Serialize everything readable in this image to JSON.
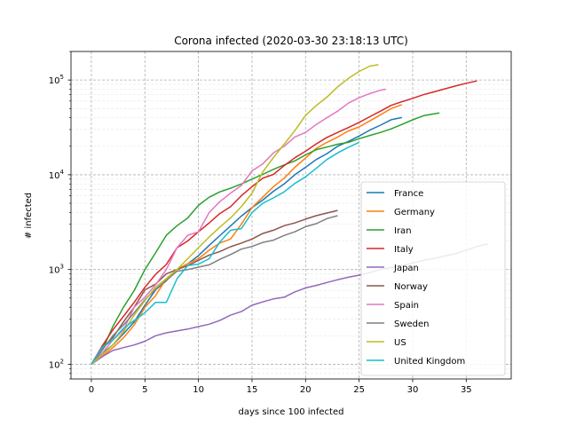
{
  "chart_data": {
    "type": "line",
    "title": "Corona infected (2020-03-30 23:18:13 UTC)",
    "xlabel": "days since 100 infected",
    "ylabel": "# infected",
    "yscale": "log",
    "xlim": [
      -1.9,
      39.2
    ],
    "ylim": [
      70,
      200000
    ],
    "xticks": [
      0,
      5,
      10,
      15,
      20,
      25,
      30,
      35
    ],
    "yticks": [
      100,
      1000,
      10000,
      100000
    ],
    "ytick_labels": [
      {
        "base": "10",
        "exp": "2"
      },
      {
        "base": "10",
        "exp": "3"
      },
      {
        "base": "10",
        "exp": "4"
      },
      {
        "base": "10",
        "exp": "5"
      }
    ],
    "grid": true,
    "minor_grid": true,
    "legend_position": "lower-right",
    "series": [
      {
        "name": "France",
        "color": "#1f77b4",
        "x": [
          0,
          1,
          2,
          3,
          4,
          5,
          6,
          7,
          8,
          9,
          10,
          11,
          12,
          13,
          14,
          15,
          16,
          17,
          18,
          19,
          20,
          21,
          22,
          23,
          24,
          25,
          26,
          27,
          28,
          29
        ],
        "y": [
          100,
          130,
          160,
          210,
          280,
          420,
          610,
          760,
          1000,
          1150,
          1400,
          1800,
          2280,
          2880,
          3660,
          4500,
          5400,
          6700,
          8000,
          10000,
          12000,
          14500,
          16700,
          20000,
          22500,
          25600,
          29600,
          33400,
          38100,
          40200
        ]
      },
      {
        "name": "Germany",
        "color": "#ff7f0e",
        "x": [
          0,
          1,
          2,
          3,
          4,
          5,
          6,
          7,
          8,
          9,
          10,
          11,
          12,
          13,
          14,
          15,
          16,
          17,
          18,
          19,
          20,
          21,
          22,
          23,
          24,
          25,
          26,
          27,
          28,
          29
        ],
        "y": [
          100,
          120,
          150,
          190,
          260,
          400,
          530,
          800,
          1000,
          1150,
          1300,
          1600,
          1900,
          2100,
          3000,
          4500,
          5800,
          7500,
          9200,
          12000,
          15000,
          19000,
          22000,
          25000,
          29000,
          32000,
          37000,
          43000,
          50000,
          55000
        ]
      },
      {
        "name": "Iran",
        "color": "#2ca02c",
        "x": [
          0,
          1,
          2,
          3,
          4,
          5,
          6,
          7,
          8,
          9,
          10,
          11,
          12,
          13,
          14,
          15,
          16,
          17,
          18,
          19,
          20,
          21,
          22,
          23,
          24,
          25,
          26,
          27,
          28,
          29,
          30,
          31,
          32.5
        ],
        "y": [
          100,
          140,
          250,
          400,
          600,
          1000,
          1500,
          2300,
          2900,
          3500,
          4750,
          5800,
          6600,
          7200,
          8000,
          9000,
          10100,
          11400,
          12700,
          14000,
          16200,
          18400,
          19600,
          21000,
          22000,
          24000,
          26000,
          28000,
          30500,
          34000,
          38000,
          42000,
          45000
        ]
      },
      {
        "name": "Italy",
        "color": "#d62728",
        "x": [
          0,
          1,
          2,
          3,
          4,
          5,
          6,
          7,
          8,
          9,
          10,
          11,
          12,
          13,
          14,
          15,
          16,
          17,
          18,
          19,
          20,
          21,
          22,
          23,
          24,
          25,
          26,
          27,
          28,
          29,
          30,
          31,
          32,
          33,
          34,
          35,
          36
        ],
        "y": [
          100,
          155,
          230,
          320,
          450,
          650,
          890,
          1130,
          1700,
          2000,
          2500,
          3100,
          3900,
          4600,
          6000,
          7500,
          9200,
          10100,
          12500,
          15100,
          17700,
          21200,
          24800,
          28000,
          31500,
          35700,
          41000,
          47000,
          54000,
          59000,
          64000,
          70000,
          75000,
          80600,
          86500,
          92500,
          97700
        ]
      },
      {
        "name": "Japan",
        "color": "#9467bd",
        "x": [
          0,
          1,
          2,
          3,
          4,
          5,
          6,
          7,
          8,
          9,
          10,
          11,
          12,
          13,
          14,
          15,
          16,
          17,
          18,
          19,
          20,
          21,
          22,
          23,
          24,
          25,
          26,
          27,
          28,
          29,
          30,
          31,
          32,
          33,
          34,
          35,
          36,
          37
        ],
        "y": [
          100,
          120,
          140,
          150,
          160,
          175,
          200,
          215,
          225,
          235,
          250,
          265,
          290,
          330,
          360,
          420,
          455,
          490,
          510,
          580,
          640,
          680,
          730,
          780,
          830,
          870,
          930,
          1000,
          1050,
          1100,
          1170,
          1250,
          1310,
          1390,
          1470,
          1600,
          1750,
          1860
        ]
      },
      {
        "name": "Norway",
        "color": "#8c564b",
        "x": [
          0,
          1,
          2,
          3,
          4,
          5,
          6,
          7,
          8,
          9,
          10,
          11,
          12,
          13,
          14,
          15,
          16,
          17,
          18,
          19,
          20,
          21,
          22,
          23
        ],
        "y": [
          100,
          150,
          190,
          280,
          400,
          610,
          700,
          900,
          1000,
          1100,
          1250,
          1420,
          1550,
          1740,
          1900,
          2100,
          2400,
          2600,
          2900,
          3100,
          3400,
          3700,
          3950,
          4200
        ]
      },
      {
        "name": "Spain",
        "color": "#e377c2",
        "x": [
          0,
          1,
          2,
          3,
          4,
          5,
          6,
          7,
          8,
          9,
          10,
          11,
          12,
          13,
          14,
          15,
          16,
          17,
          18,
          19,
          20,
          21,
          22,
          23,
          24,
          25,
          26,
          27,
          27.5
        ],
        "y": [
          100,
          130,
          180,
          230,
          400,
          510,
          690,
          1000,
          1700,
          2300,
          2500,
          4000,
          5200,
          6400,
          7700,
          11000,
          13000,
          17000,
          20000,
          25000,
          28000,
          34000,
          40000,
          47000,
          57000,
          65000,
          72000,
          78000,
          80000
        ]
      },
      {
        "name": "Sweden",
        "color": "#7f7f7f",
        "x": [
          0,
          1,
          2,
          3,
          4,
          5,
          6,
          7,
          8,
          9,
          10,
          11,
          12,
          13,
          14,
          15,
          16,
          17,
          18,
          19,
          20,
          21,
          22,
          23
        ],
        "y": [
          100,
          140,
          200,
          260,
          350,
          480,
          620,
          770,
          960,
          1000,
          1060,
          1120,
          1280,
          1440,
          1640,
          1750,
          1930,
          2040,
          2290,
          2500,
          2830,
          3050,
          3450,
          3700
        ]
      },
      {
        "name": "US",
        "color": "#bcbd22",
        "x": [
          0,
          1,
          2,
          3,
          4,
          5,
          6,
          7,
          8,
          9,
          10,
          11,
          12,
          13,
          14,
          15,
          16,
          17,
          18,
          19,
          20,
          21,
          22,
          23,
          24,
          25,
          26,
          26.8
        ],
        "y": [
          100,
          125,
          160,
          220,
          330,
          470,
          650,
          800,
          1000,
          1300,
          1700,
          2200,
          2800,
          3500,
          4600,
          6400,
          10700,
          15200,
          21000,
          29200,
          42200,
          53900,
          66000,
          84800,
          104000,
          123000,
          140000,
          145000
        ]
      },
      {
        "name": "United Kingdom",
        "color": "#17becf",
        "x": [
          0,
          1,
          2,
          3,
          4,
          5,
          6,
          7,
          8,
          9,
          10,
          11,
          12,
          13,
          14,
          15,
          16,
          17,
          18,
          19,
          20,
          21,
          22,
          23,
          24,
          25
        ],
        "y": [
          100,
          150,
          180,
          240,
          290,
          350,
          450,
          450,
          800,
          1100,
          1140,
          1300,
          1950,
          2600,
          2700,
          3980,
          5000,
          5700,
          6600,
          8100,
          9500,
          11700,
          14500,
          17000,
          19500,
          22000
        ]
      }
    ]
  }
}
